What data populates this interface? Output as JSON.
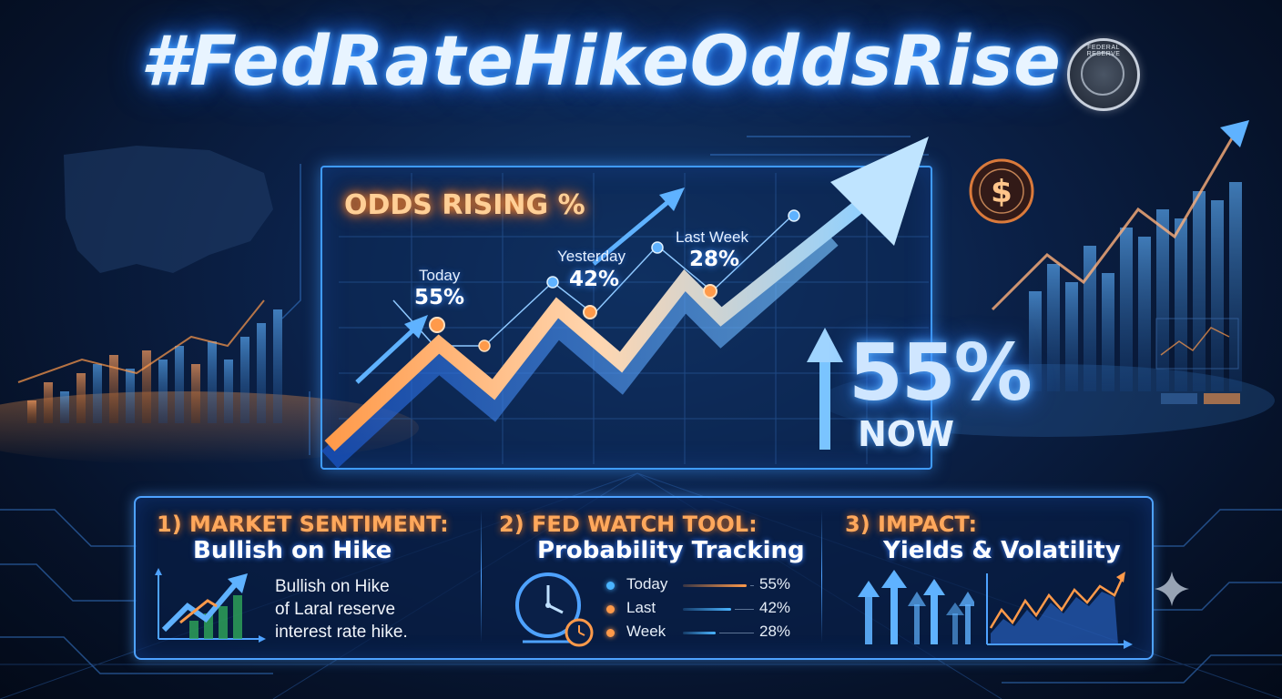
{
  "title": "#FedRateHikeOddsRise",
  "seal_text": "FEDERAL RESERVE",
  "colors": {
    "accent_blue": "#3f9bff",
    "accent_orange": "#ffa85c",
    "background": "#0b2148"
  },
  "main_chart": {
    "heading": "ODDS RISING %",
    "points": [
      {
        "label": "Today",
        "value": "55%"
      },
      {
        "label": "Yesterday",
        "value": "42%"
      },
      {
        "label": "Last Week",
        "value": "28%"
      }
    ],
    "big_value": "55%",
    "big_caption": "NOW"
  },
  "sections": [
    {
      "number_heading": "1) MARKET SENTIMENT:",
      "subheading": "Bullish on Hike",
      "description_lines": [
        "Bullish on Hike",
        "of Laral reserve",
        "interest rate hike."
      ]
    },
    {
      "number_heading": "2) FED WATCH TOOL:",
      "subheading": "Probability Tracking",
      "rows": [
        {
          "name": "Today",
          "value": "55%",
          "dot_color": "#4ab4ff",
          "bar_color": "#ff9a4a",
          "fill": 0.55
        },
        {
          "name": "Last",
          "value": "42%",
          "dot_color": "#ff9a4a",
          "bar_color": "#4ab4ff",
          "fill": 0.42
        },
        {
          "name": "Week",
          "value": "28%",
          "dot_color": "#ff9a4a",
          "bar_color": "#4ab4ff",
          "fill": 0.28
        }
      ]
    },
    {
      "number_heading": "3) IMPACT:",
      "subheading": "Yields & Volatility"
    }
  ],
  "icons": [
    "fed-seal-icon",
    "dollar-coin-icon",
    "up-arrow-icon",
    "clock-icon",
    "sparkle-icon",
    "trend-arrow-icon"
  ]
}
